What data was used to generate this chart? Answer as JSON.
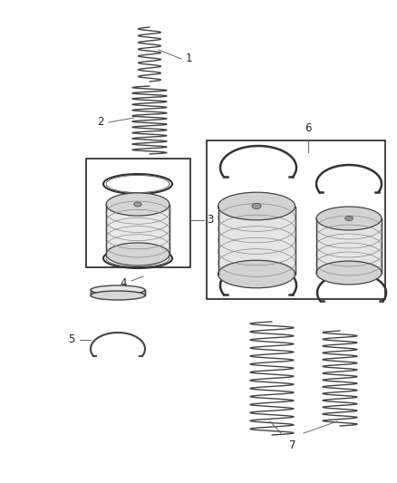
{
  "background_color": "#ffffff",
  "fig_width": 4.38,
  "fig_height": 5.33,
  "dpi": 100,
  "coil_color": "#444444",
  "edge_color": "#444444",
  "face_light": "#e8e8e8",
  "face_mid": "#cccccc",
  "face_dark": "#aaaaaa"
}
